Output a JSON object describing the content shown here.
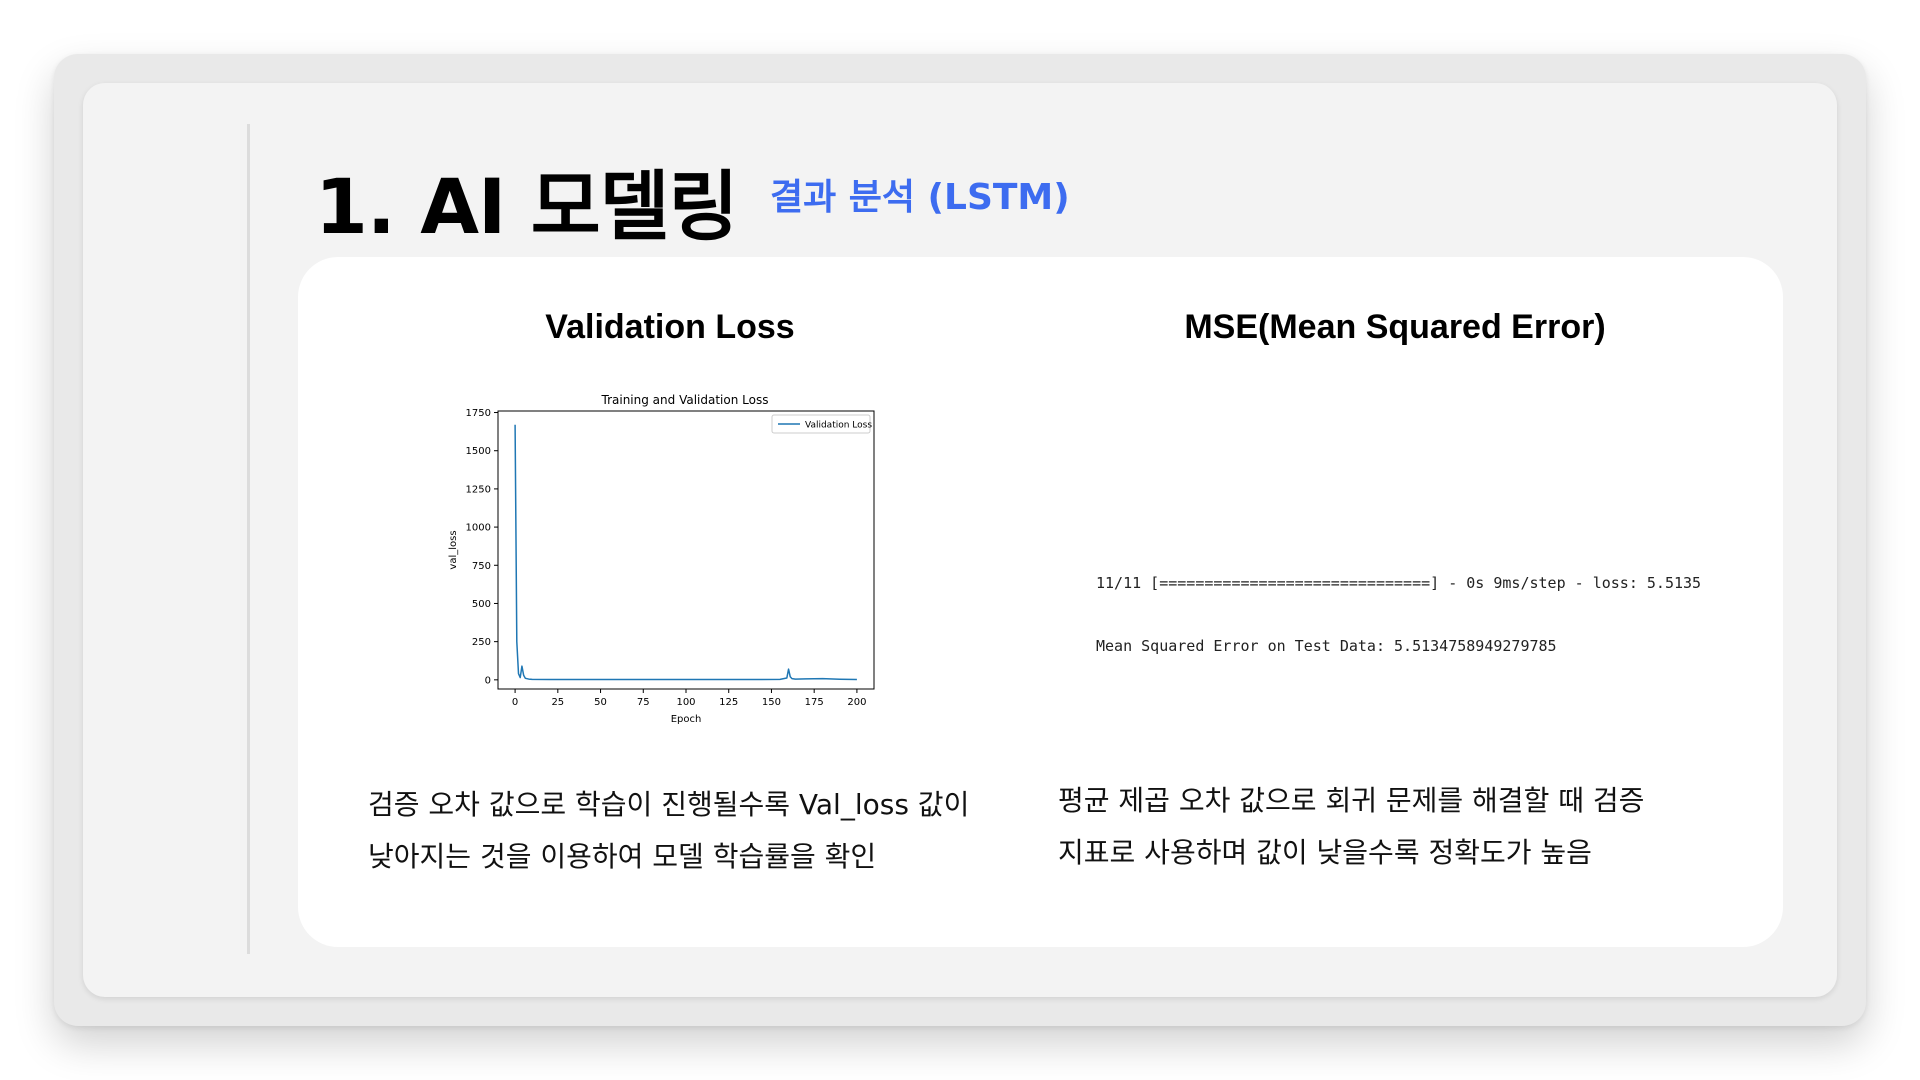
{
  "slide": {
    "title": "1. AI 모델링",
    "subtitle": "결과 분석 (LSTM)"
  },
  "left_panel": {
    "heading": "Validation Loss",
    "description_lines": [
      "검증 오차 값으로 학습이 진행될수록 Val_loss 값이",
      "낮아지는 것을 이용하여 모델 학습률을 확인"
    ]
  },
  "right_panel": {
    "heading": "MSE(Mean Squared Error)",
    "console_lines": [
      "11/11 [==============================] - 0s 9ms/step - loss: 5.5135",
      "Mean Squared Error on Test Data: 5.5134758949279785"
    ],
    "description_lines": [
      "평균 제곱 오차 값으로 회귀 문제를 해결할 때 검증",
      "지표로 사용하며 값이 낮을수록 정확도가 높음"
    ]
  },
  "chart_data": {
    "type": "line",
    "title": "Training and Validation Loss",
    "xlabel": "Epoch",
    "ylabel": "val_loss",
    "xlim": [
      -10,
      210
    ],
    "ylim": [
      -60,
      1760
    ],
    "xticks": [
      0,
      25,
      50,
      75,
      100,
      125,
      150,
      175,
      200
    ],
    "yticks": [
      0,
      250,
      500,
      750,
      1000,
      1250,
      1500,
      1750
    ],
    "legend_position": "top-right",
    "grid": false,
    "series": [
      {
        "name": "Validation Loss",
        "color": "#1f77b4",
        "x": [
          0,
          1,
          2,
          3,
          4,
          5,
          6,
          8,
          10,
          20,
          40,
          60,
          80,
          100,
          120,
          140,
          155,
          159,
          160,
          161,
          162,
          164,
          170,
          180,
          190,
          200
        ],
        "y": [
          1670,
          250,
          40,
          15,
          90,
          30,
          10,
          5,
          3,
          2,
          2,
          2,
          2,
          2,
          2,
          2,
          3,
          12,
          70,
          20,
          8,
          5,
          6,
          8,
          4,
          2
        ]
      }
    ]
  }
}
